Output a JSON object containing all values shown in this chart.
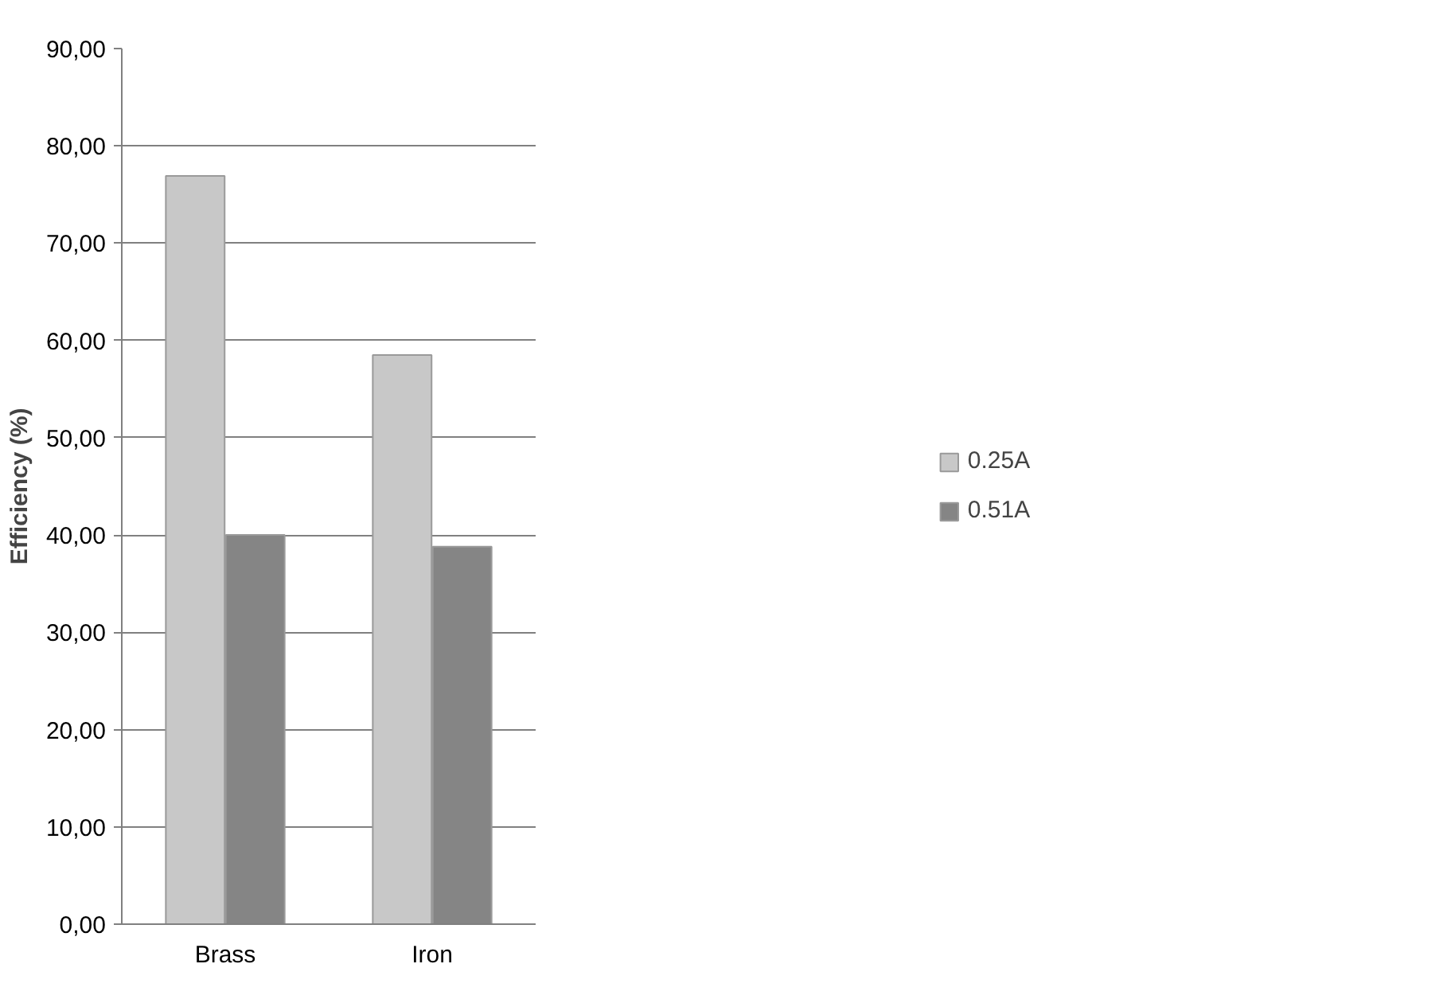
{
  "chart_data": {
    "type": "bar",
    "ylabel": "Efficiency (%)",
    "categories": [
      "Brass",
      "Iron"
    ],
    "series": [
      {
        "name": "0.25A",
        "color": "#c8c8c8",
        "values": [
          76.9,
          58.5
        ]
      },
      {
        "name": "0.51A",
        "color": "#858585",
        "values": [
          40.0,
          38.8
        ]
      }
    ],
    "ylim": [
      0,
      90
    ],
    "yticks": [
      {
        "value": 0,
        "label": "0,00"
      },
      {
        "value": 10,
        "label": "10,00"
      },
      {
        "value": 20,
        "label": "20,00"
      },
      {
        "value": 30,
        "label": "30,00"
      },
      {
        "value": 40,
        "label": "40,00"
      },
      {
        "value": 50,
        "label": "50,00"
      },
      {
        "value": 60,
        "label": "60,00"
      },
      {
        "value": 70,
        "label": "70,00"
      },
      {
        "value": 80,
        "label": "80,00"
      },
      {
        "value": 90,
        "label": "90,00"
      }
    ],
    "grid": "y",
    "legend": "right"
  }
}
